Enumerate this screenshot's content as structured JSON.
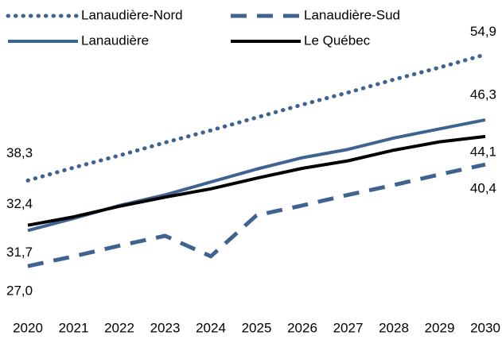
{
  "chart_data": {
    "type": "line",
    "x": [
      2020,
      2021,
      2022,
      2023,
      2024,
      2025,
      2026,
      2027,
      2028,
      2029,
      2030
    ],
    "series": [
      {
        "name": "Lanaudière-Nord",
        "color": "#3f6391",
        "style": "dotted",
        "values": [
          38.3,
          40.0,
          41.6,
          43.3,
          44.9,
          46.6,
          48.3,
          49.9,
          51.6,
          53.2,
          54.9
        ],
        "value_labels": [
          "38,3",
          null,
          null,
          null,
          null,
          null,
          null,
          null,
          null,
          null,
          "54,9"
        ]
      },
      {
        "name": "Lanaudière-Sud",
        "color": "#3f6391",
        "style": "dashed",
        "values": [
          27.0,
          28.3,
          29.7,
          31.0,
          28.3,
          33.7,
          35.0,
          36.4,
          37.7,
          39.1,
          40.4
        ],
        "value_labels": [
          "27,0",
          null,
          null,
          null,
          null,
          null,
          null,
          null,
          null,
          null,
          "40,4"
        ]
      },
      {
        "name": "Lanaudière",
        "color": "#3f6391",
        "style": "solid",
        "values": [
          31.7,
          33.3,
          35.0,
          36.4,
          38.1,
          39.8,
          41.3,
          42.4,
          43.9,
          45.1,
          46.3
        ],
        "value_labels": [
          "31,7",
          null,
          null,
          null,
          null,
          null,
          null,
          null,
          null,
          null,
          "46,3"
        ]
      },
      {
        "name": "Le Québec",
        "color": "#000000",
        "style": "solid",
        "values": [
          32.4,
          33.5,
          34.9,
          36.1,
          37.2,
          38.6,
          39.9,
          40.9,
          42.3,
          43.4,
          44.1
        ],
        "value_labels": [
          "32,4",
          null,
          null,
          null,
          null,
          null,
          null,
          null,
          null,
          null,
          "44,1"
        ]
      }
    ],
    "ylim": [
      22,
      60
    ],
    "legend": "top"
  }
}
